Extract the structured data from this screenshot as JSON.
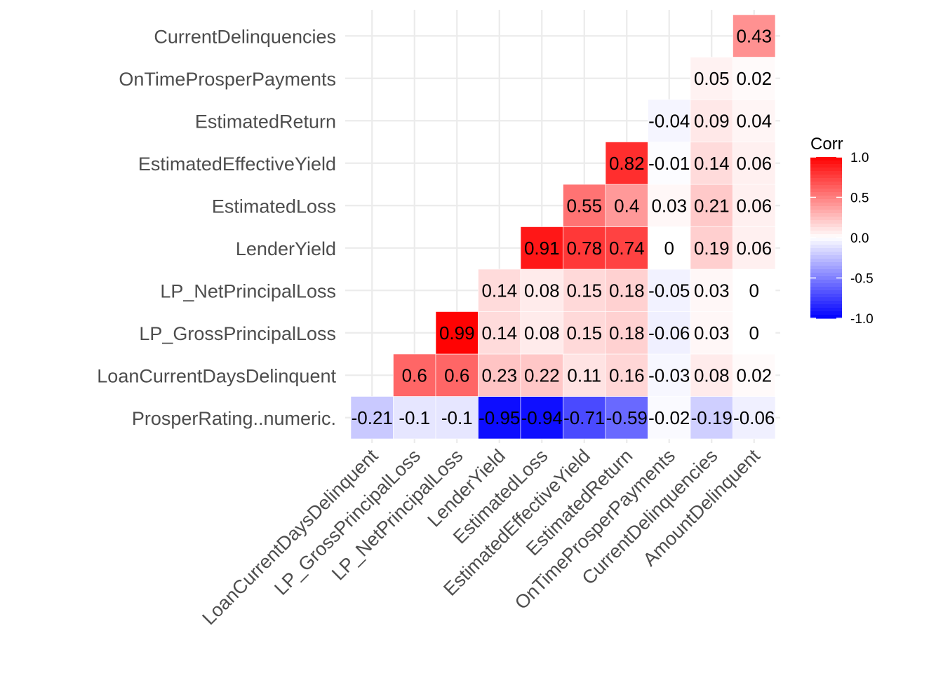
{
  "chart_data": {
    "type": "heatmap",
    "title": "",
    "xlabel": "",
    "ylabel": "",
    "x_categories": [
      "LoanCurrentDaysDelinquent",
      "LP_GrossPrincipalLoss",
      "LP_NetPrincipalLoss",
      "LenderYield",
      "EstimatedLoss",
      "EstimatedEffectiveYield",
      "EstimatedReturn",
      "OnTimeProsperPayments",
      "CurrentDelinquencies",
      "AmountDelinquent"
    ],
    "y_categories": [
      "ProsperRating..numeric.",
      "LoanCurrentDaysDelinquent",
      "LP_GrossPrincipalLoss",
      "LP_NetPrincipalLoss",
      "LenderYield",
      "EstimatedLoss",
      "EstimatedEffectiveYield",
      "EstimatedReturn",
      "OnTimeProsperPayments",
      "CurrentDelinquencies"
    ],
    "rows": [
      {
        "y": "ProsperRating..numeric.",
        "values": [
          -0.21,
          -0.1,
          -0.1,
          -0.95,
          -0.94,
          -0.71,
          -0.59,
          -0.02,
          -0.19,
          -0.06
        ],
        "labels": [
          "-0.21",
          "-0.1",
          "-0.1",
          "-0.95",
          "-0.94",
          "-0.71",
          "-0.59",
          "-0.02",
          "-0.19",
          "-0.06"
        ]
      },
      {
        "y": "LoanCurrentDaysDelinquent",
        "values": [
          null,
          0.6,
          0.6,
          0.23,
          0.22,
          0.11,
          0.16,
          -0.03,
          0.08,
          0.02
        ],
        "labels": [
          "",
          "0.6",
          "0.6",
          "0.23",
          "0.22",
          "0.11",
          "0.16",
          "-0.03",
          "0.08",
          "0.02"
        ]
      },
      {
        "y": "LP_GrossPrincipalLoss",
        "values": [
          null,
          null,
          0.99,
          0.14,
          0.08,
          0.15,
          0.18,
          -0.06,
          0.03,
          0
        ],
        "labels": [
          "",
          "",
          "0.99",
          "0.14",
          "0.08",
          "0.15",
          "0.18",
          "-0.06",
          "0.03",
          "0"
        ]
      },
      {
        "y": "LP_NetPrincipalLoss",
        "values": [
          null,
          null,
          null,
          0.14,
          0.08,
          0.15,
          0.18,
          -0.05,
          0.03,
          0
        ],
        "labels": [
          "",
          "",
          "",
          "0.14",
          "0.08",
          "0.15",
          "0.18",
          "-0.05",
          "0.03",
          "0"
        ]
      },
      {
        "y": "LenderYield",
        "values": [
          null,
          null,
          null,
          null,
          0.91,
          0.78,
          0.74,
          0,
          0.19,
          0.06
        ],
        "labels": [
          "",
          "",
          "",
          "",
          "0.91",
          "0.78",
          "0.74",
          "0",
          "0.19",
          "0.06"
        ]
      },
      {
        "y": "EstimatedLoss",
        "values": [
          null,
          null,
          null,
          null,
          null,
          0.55,
          0.4,
          0.03,
          0.21,
          0.06
        ],
        "labels": [
          "",
          "",
          "",
          "",
          "",
          "0.55",
          "0.4",
          "0.03",
          "0.21",
          "0.06"
        ]
      },
      {
        "y": "EstimatedEffectiveYield",
        "values": [
          null,
          null,
          null,
          null,
          null,
          null,
          0.82,
          -0.01,
          0.14,
          0.06
        ],
        "labels": [
          "",
          "",
          "",
          "",
          "",
          "",
          "0.82",
          "-0.01",
          "0.14",
          "0.06"
        ]
      },
      {
        "y": "EstimatedReturn",
        "values": [
          null,
          null,
          null,
          null,
          null,
          null,
          null,
          -0.04,
          0.09,
          0.04
        ],
        "labels": [
          "",
          "",
          "",
          "",
          "",
          "",
          "",
          "-0.04",
          "0.09",
          "0.04"
        ]
      },
      {
        "y": "OnTimeProsperPayments",
        "values": [
          null,
          null,
          null,
          null,
          null,
          null,
          null,
          null,
          0.05,
          0.02
        ],
        "labels": [
          "",
          "",
          "",
          "",
          "",
          "",
          "",
          "",
          "0.05",
          "0.02"
        ]
      },
      {
        "y": "CurrentDelinquencies",
        "values": [
          null,
          null,
          null,
          null,
          null,
          null,
          null,
          null,
          null,
          0.43
        ],
        "labels": [
          "",
          "",
          "",
          "",
          "",
          "",
          "",
          "",
          "",
          "0.43"
        ]
      }
    ],
    "color_scale": {
      "low": "#0000ff",
      "mid": "#ffffff",
      "high": "#ff0000",
      "limits": [
        -1,
        1
      ]
    },
    "legend": {
      "title": "Corr",
      "position": "right",
      "breaks": [
        1.0,
        0.5,
        0.0,
        -0.5,
        -1.0
      ],
      "break_labels": [
        "1.0",
        "0.5",
        "0.0",
        "-0.5",
        "-1.0"
      ]
    },
    "grid": true
  }
}
